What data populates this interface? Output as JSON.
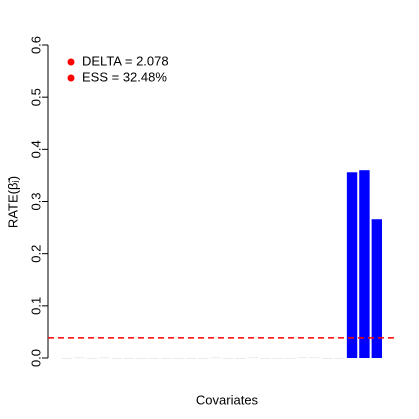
{
  "chart_data": {
    "type": "bar",
    "ylabel": "RATE(β̃ⱼ)",
    "xlabel": "Covariates",
    "values": [
      0,
      0.001,
      0,
      0.001,
      0,
      0,
      0,
      0,
      0,
      0,
      0,
      0,
      0.001,
      0,
      0,
      0.001,
      0,
      0,
      0,
      0.001,
      0.001,
      0,
      0,
      0.356,
      0.36,
      0.266
    ],
    "colors": [
      "#dddddd",
      "#dddddd",
      "#dddddd",
      "#dddddd",
      "#dddddd",
      "#dddddd",
      "#dddddd",
      "#dddddd",
      "#dddddd",
      "#dddddd",
      "#dddddd",
      "#dddddd",
      "#dddddd",
      "#dddddd",
      "#dddddd",
      "#dddddd",
      "#dddddd",
      "#dddddd",
      "#dddddd",
      "#dddddd",
      "#dddddd",
      "#dddddd",
      "#dddddd",
      "#0000ff",
      "#0000ff",
      "#0000ff"
    ],
    "threshold": 0.0385,
    "threshold_color": "#ff0000",
    "ylim": [
      0,
      0.6
    ],
    "yticks": [
      {
        "value": 0,
        "label": "0.0"
      },
      0.1,
      0.2,
      0.3,
      0.4,
      0.5,
      0.6
    ],
    "legend": {
      "position": "top-left",
      "color": "#ff0000",
      "entries": [
        "DELTA = 2.078",
        "ESS = 32.48%"
      ]
    }
  }
}
